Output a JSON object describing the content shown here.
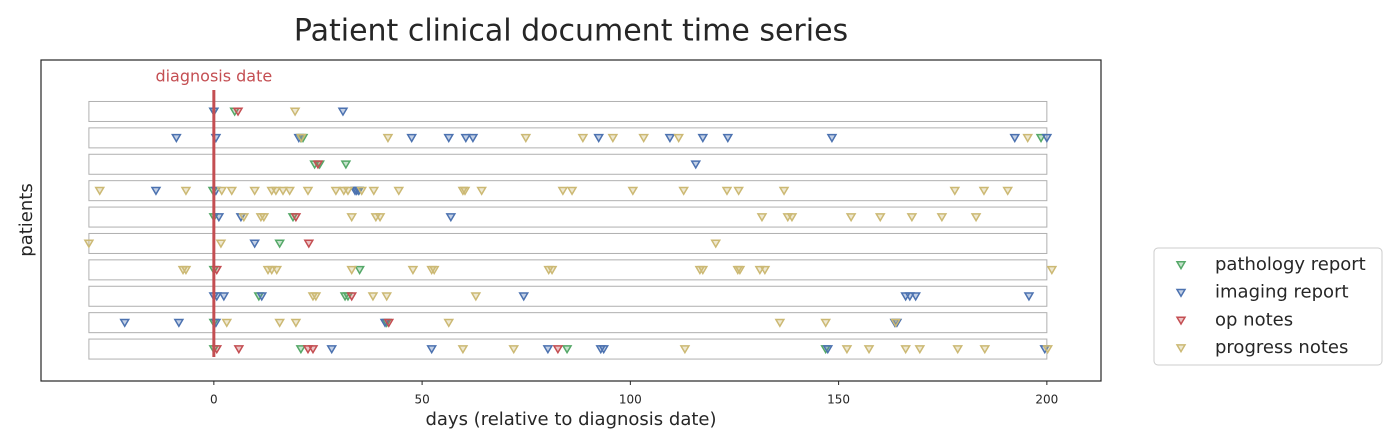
{
  "chart_data": {
    "type": "scatter",
    "title": "Patient clinical document time series",
    "x_label": "days (relative to diagnosis date)",
    "y_label": "patients",
    "xlim": [
      -41.5,
      213
    ],
    "xticks": [
      0,
      50,
      100,
      150,
      200
    ],
    "ylim": [
      -1.21,
      10.95
    ],
    "row_span": [
      -30,
      200
    ],
    "annotation": {
      "text": "diagnosis date",
      "x": 0,
      "color": "#c44e52"
    },
    "legend": "lower right outside",
    "series": [
      {
        "name": "pathology report",
        "color": "#55a868",
        "x": [
          0,
          5,
          20.9,
          21.4,
          198.6,
          24.2,
          25.4,
          31.7,
          -0.2,
          34.8,
          0,
          19,
          15.8,
          0,
          35,
          10.8,
          31.5,
          32.2,
          0,
          41.5,
          0,
          20.9,
          84.8,
          146.9
        ],
        "y": [
          9,
          9,
          8,
          8,
          8,
          7,
          7,
          7,
          6,
          6,
          5,
          5,
          4,
          3,
          3,
          2,
          2,
          2,
          1,
          1,
          0,
          0,
          0,
          0
        ]
      },
      {
        "name": "imaging report",
        "color": "#4c72b0",
        "x": [
          0,
          31,
          -9,
          0.5,
          20.4,
          47.5,
          56.4,
          60.5,
          62.2,
          92.4,
          109.5,
          117.4,
          123.4,
          148.4,
          192.3,
          200,
          115.7,
          -13.9,
          0.5,
          33.9,
          34.3,
          34.8,
          1.2,
          6.5,
          56.9,
          9.8,
          0,
          0.7,
          2.4,
          11.5,
          74.4,
          166.1,
          167.1,
          168.5,
          195.7,
          -21.4,
          -8.4,
          0.5,
          41.1,
          163.5,
          164,
          28.3,
          52.3,
          80.2,
          92.9,
          93.6,
          147.4,
          199.5
        ],
        "y": [
          9,
          9,
          8,
          8,
          8,
          8,
          8,
          8,
          8,
          8,
          8,
          8,
          8,
          8,
          8,
          8,
          7,
          6,
          6,
          6,
          6,
          6,
          5,
          5,
          5,
          4,
          2,
          2,
          2,
          2,
          2,
          2,
          2,
          2,
          2,
          1,
          1,
          1,
          1,
          1,
          1,
          0,
          0,
          0,
          0,
          0,
          0,
          0
        ]
      },
      {
        "name": "op notes",
        "color": "#c44e52",
        "x": [
          5.8,
          25,
          19.7,
          22.8,
          0.7,
          33.1,
          42,
          0.7,
          6,
          22.6,
          23.8,
          82.6
        ],
        "y": [
          9,
          7,
          5,
          4,
          3,
          2,
          1,
          0,
          0,
          0,
          0,
          0
        ]
      },
      {
        "name": "progress notes",
        "color": "#ccb974",
        "x": [
          19.5,
          21,
          41.8,
          74.9,
          88.6,
          95.8,
          103.2,
          111.6,
          195.4,
          -27.4,
          -6.7,
          1.9,
          4.3,
          9.8,
          13.9,
          14.9,
          16.6,
          18.2,
          22.6,
          29.3,
          31.2,
          32.2,
          35.5,
          38.4,
          44.4,
          59.8,
          60.3,
          64.3,
          83.8,
          86,
          100.6,
          112.8,
          123.2,
          126,
          136.9,
          177.9,
          184.9,
          190.6,
          7.2,
          11.3,
          12,
          33.1,
          38.9,
          39.9,
          131.6,
          137.8,
          138.8,
          153,
          160,
          167.6,
          174.8,
          183,
          -30,
          1.7,
          120.5,
          -7.4,
          -6.7,
          13,
          13.9,
          15.1,
          33.1,
          47.8,
          52.3,
          52.9,
          80.4,
          81.2,
          116.7,
          117.4,
          125.8,
          126.3,
          131.1,
          132.3,
          201.2,
          23.8,
          24.5,
          38.2,
          41.5,
          62.9,
          3.1,
          15.8,
          19.7,
          56.4,
          135.9,
          146.9,
          163.7,
          59.8,
          72,
          113.1,
          152,
          157.3,
          166.1,
          169.5,
          178.6,
          185.1,
          200.2
        ],
        "y": [
          9,
          8,
          8,
          8,
          8,
          8,
          8,
          8,
          8,
          6,
          6,
          6,
          6,
          6,
          6,
          6,
          6,
          6,
          6,
          6,
          6,
          6,
          6,
          6,
          6,
          6,
          6,
          6,
          6,
          6,
          6,
          6,
          6,
          6,
          6,
          6,
          6,
          6,
          5,
          5,
          5,
          5,
          5,
          5,
          5,
          5,
          5,
          5,
          5,
          5,
          5,
          5,
          4,
          4,
          4,
          3,
          3,
          3,
          3,
          3,
          3,
          3,
          3,
          3,
          3,
          3,
          3,
          3,
          3,
          3,
          3,
          3,
          3,
          2,
          2,
          2,
          2,
          2,
          1,
          1,
          1,
          1,
          1,
          1,
          1,
          0,
          0,
          0,
          0,
          0,
          0,
          0,
          0,
          0,
          0
        ]
      }
    ]
  }
}
